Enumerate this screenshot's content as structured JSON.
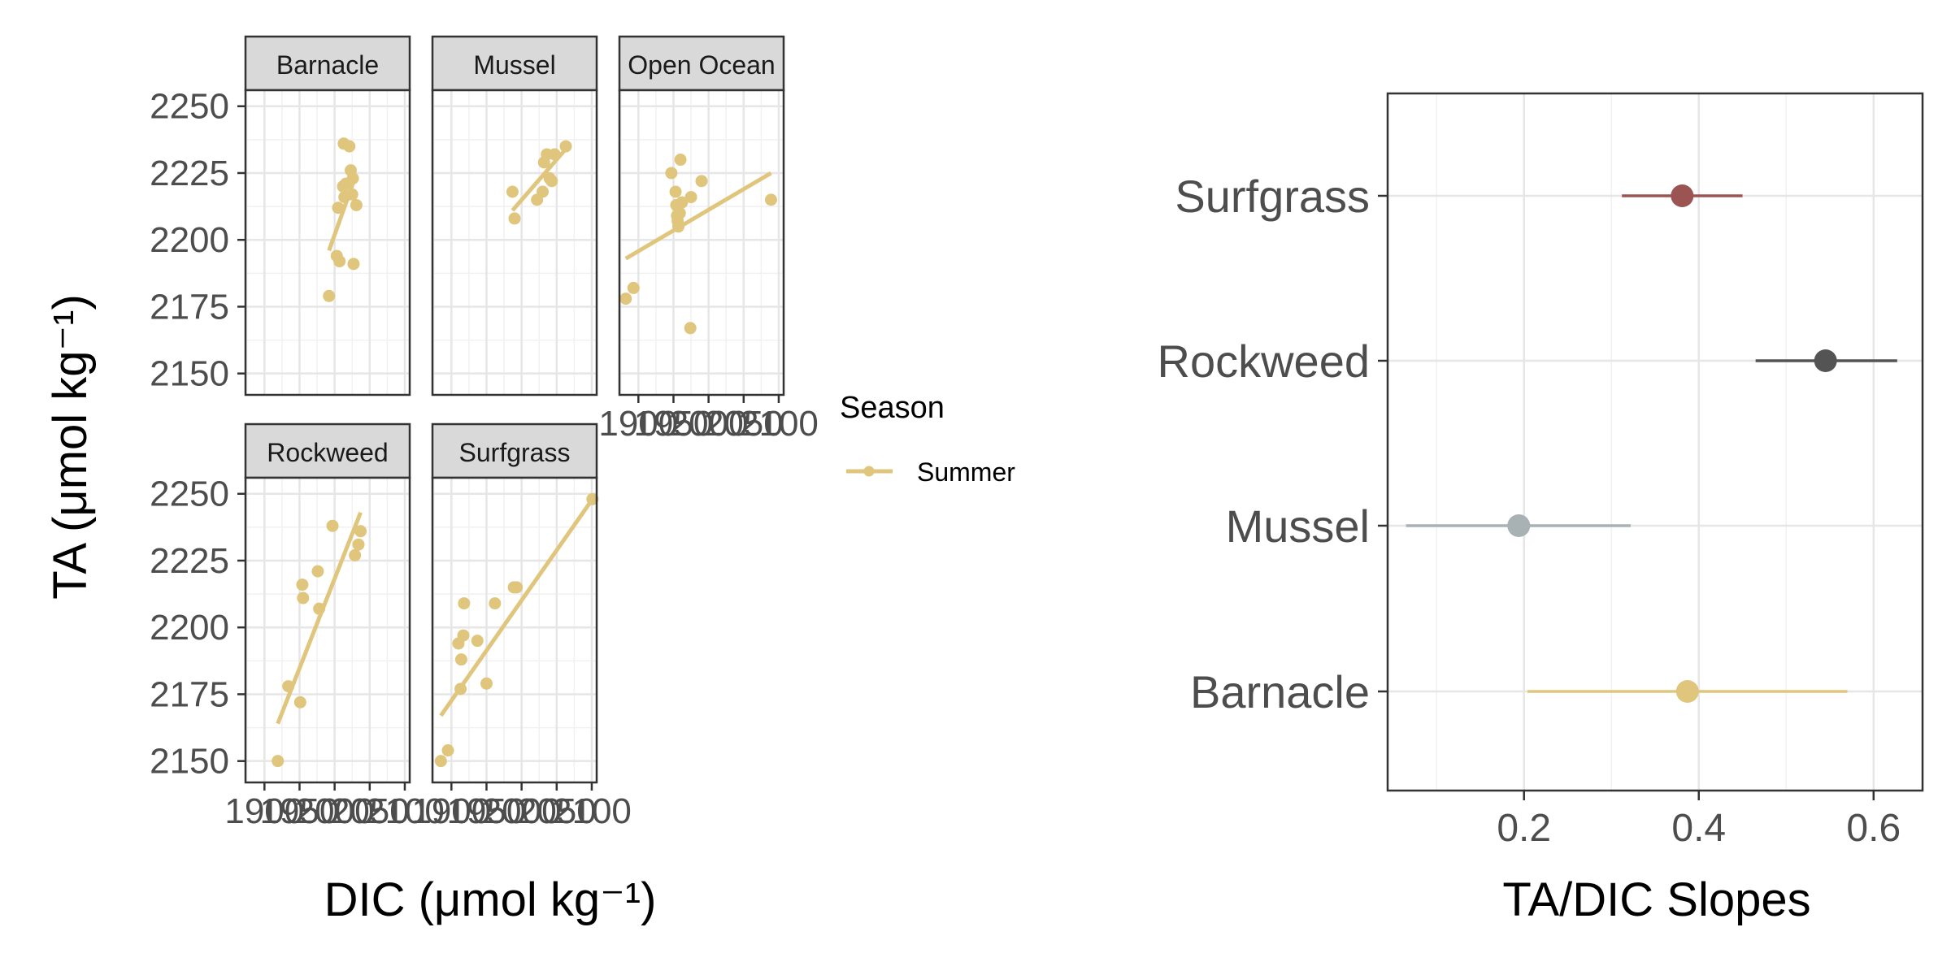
{
  "chart_data": [
    {
      "type": "scatter",
      "ylabel": "TA (μmol kg⁻¹)",
      "xlabel": "DIC (μmol kg⁻¹)",
      "ylim": [
        2142,
        2256
      ],
      "yticks": [
        2150,
        2175,
        2200,
        2225,
        2250
      ],
      "xticks": [
        1900,
        1950,
        2000,
        2050,
        2100
      ],
      "xlim": [
        1873,
        2107
      ],
      "legend": {
        "title": "Season",
        "entries": [
          "Summer"
        ],
        "placement": "right",
        "color": "#E0C57D"
      },
      "panels": [
        {
          "name": "Barnacle",
          "points": [
            [
              1992,
              2179
            ],
            [
              2003,
              2194
            ],
            [
              2005,
              2212
            ],
            [
              2007,
              2192
            ],
            [
              2012,
              2220
            ],
            [
              2013,
              2236
            ],
            [
              2014,
              2216
            ],
            [
              2016,
              2221
            ],
            [
              2021,
              2235
            ],
            [
              2023,
              2226
            ],
            [
              2025,
              2217
            ],
            [
              2026,
              2223
            ],
            [
              2027,
              2191
            ],
            [
              2031,
              2213
            ]
          ],
          "fit": [
            [
              1992,
              2196
            ],
            [
              2030,
              2224
            ]
          ]
        },
        {
          "name": "Mussel",
          "points": [
            [
              1987,
              2218
            ],
            [
              1990,
              2208
            ],
            [
              2022,
              2215
            ],
            [
              2030,
              2218
            ],
            [
              2032,
              2229
            ],
            [
              2036,
              2232
            ],
            [
              2040,
              2223
            ],
            [
              2043,
              2222
            ],
            [
              2047,
              2232
            ],
            [
              2063,
              2235
            ]
          ],
          "fit": [
            [
              1987,
              2211
            ],
            [
              2063,
              2234
            ]
          ]
        },
        {
          "name": "Open Ocean",
          "points": [
            [
              1882,
              2178
            ],
            [
              1893,
              2182
            ],
            [
              1947,
              2225
            ],
            [
              1953,
              2218
            ],
            [
              1954,
              2213
            ],
            [
              1955,
              2209
            ],
            [
              1956,
              2207
            ],
            [
              1957,
              2205
            ],
            [
              1959,
              2210
            ],
            [
              1960,
              2230
            ],
            [
              1962,
              2214
            ],
            [
              1974,
              2167
            ],
            [
              1975,
              2216
            ],
            [
              1990,
              2222
            ],
            [
              2089,
              2215
            ]
          ],
          "fit": [
            [
              1882,
              2193
            ],
            [
              2089,
              2225
            ]
          ]
        },
        {
          "name": "Rockweed",
          "points": [
            [
              1919,
              2150
            ],
            [
              1934,
              2178
            ],
            [
              1951,
              2172
            ],
            [
              1954,
              2216
            ],
            [
              1955,
              2211
            ],
            [
              1976,
              2221
            ],
            [
              1978,
              2207
            ],
            [
              1997,
              2238
            ],
            [
              2029,
              2227
            ],
            [
              2034,
              2231
            ],
            [
              2037,
              2236
            ]
          ],
          "fit": [
            [
              1919,
              2164
            ],
            [
              2037,
              2243
            ]
          ]
        },
        {
          "name": "Surfgrass",
          "points": [
            [
              1885,
              2150
            ],
            [
              1895,
              2154
            ],
            [
              1910,
              2194
            ],
            [
              1913,
              2177
            ],
            [
              1914,
              2188
            ],
            [
              1917,
              2197
            ],
            [
              1918,
              2209
            ],
            [
              1937,
              2195
            ],
            [
              1950,
              2179
            ],
            [
              1962,
              2209
            ],
            [
              1989,
              2215
            ],
            [
              1993,
              2215
            ],
            [
              2101,
              2248
            ]
          ],
          "fit": [
            [
              1885,
              2167
            ],
            [
              2101,
              2248
            ]
          ]
        }
      ]
    },
    {
      "type": "errorbar",
      "xlabel": "TA/DIC Slopes",
      "xlim": [
        0.044,
        0.656
      ],
      "xticks": [
        "0.2",
        "0.4",
        "0.6"
      ],
      "categories": [
        "Surfgrass",
        "Rockweed",
        "Mussel",
        "Barnacle"
      ],
      "estimates": [
        {
          "name": "Surfgrass",
          "value": 0.381,
          "low": 0.312,
          "high": 0.45,
          "color": "#9C5453"
        },
        {
          "name": "Rockweed",
          "value": 0.545,
          "low": 0.465,
          "high": 0.627,
          "color": "#545454"
        },
        {
          "name": "Mussel",
          "value": 0.194,
          "low": 0.065,
          "high": 0.322,
          "color": "#A8B2B4"
        },
        {
          "name": "Barnacle",
          "value": 0.387,
          "low": 0.204,
          "high": 0.57,
          "color": "#E0C57D"
        }
      ]
    }
  ]
}
